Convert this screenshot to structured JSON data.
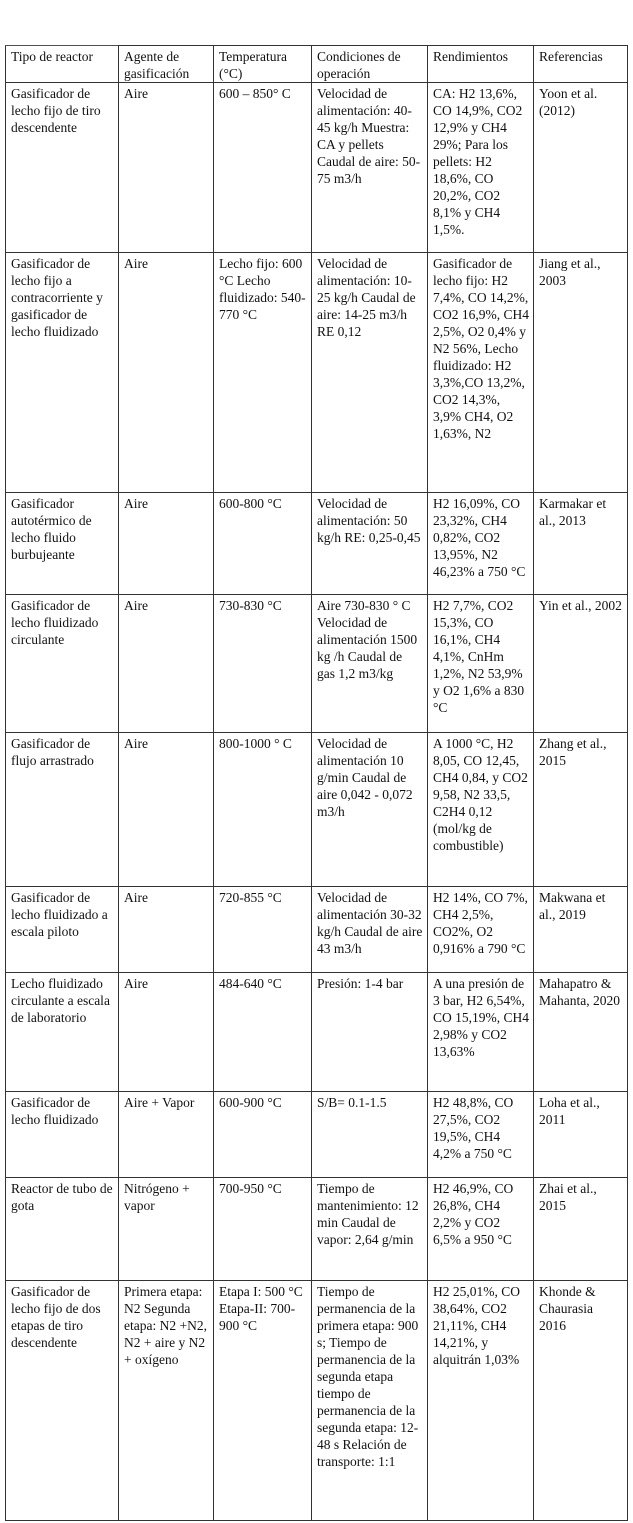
{
  "table": {
    "header": [
      "Tipo de reactor",
      "Agente de gasificación",
      "Temperatura (°C)",
      "Condiciones de operación",
      "Rendimientos",
      "Referencias"
    ],
    "rows": [
      [
        "Gasificador de lecho fijo de tiro descendente",
        "Aire",
        "600 – 850° C",
        "Velocidad de alimentación: 40-45 kg/h Muestra: CA y pellets Caudal de aire: 50-75 m3/h",
        "CA: H2 13,6%, CO 14,9%, CO2 12,9% y CH4 29%; Para los pellets: H2 18,6%, CO 20,2%, CO2 8,1% y CH4 1,5%.",
        "Yoon et al. (2012)"
      ],
      [
        "Gasificador de lecho fijo a contracorriente y gasificador de lecho fluidizado",
        "Aire",
        "Lecho fijo: 600 °C Lecho fluidizado: 540-770 °C",
        "Velocidad de alimentación: 10-25 kg/h Caudal de aire: 14-25 m3/h RE 0,12",
        "Gasificador de lecho fijo: H2 7,4%, CO 14,2%, CO2 16,9%, CH4 2,5%, O2 0,4% y N2 56%, Lecho fluidizado: H2 3,3%,CO 13,2%, CO2 14,3%, 3,9% CH4, O2 1,63%, N2",
        "Jiang et al., 2003"
      ],
      [
        "Gasificador autotérmico de lecho fluido burbujeante",
        "Aire",
        "600-800 °C",
        "Velocidad de alimentación: 50 kg/h RE: 0,25-0,45",
        "H2 16,09%, CO 23,32%, CH4 0,82%, CO2 13,95%, N2 46,23% a 750 °C",
        "Karmakar et al., 2013"
      ],
      [
        "Gasificador de lecho fluidizado circulante",
        "Aire",
        "730-830 °C",
        "Aire 730-830 ° C Velocidad de alimentación 1500 kg /h Caudal de gas 1,2 m3/kg",
        "H2 7,7%, CO2 15,3%, CO 16,1%, CH4 4,1%, CnHm 1,2%, N2 53,9% y O2 1,6% a 830 °C",
        "Yin et al., 2002"
      ],
      [
        "Gasificador de flujo arrastrado",
        "Aire",
        "800-1000 ° C",
        "Velocidad de alimentación 10 g/min Caudal de aire 0,042 - 0,072 m3/h",
        "A 1000 °C, H2 8,05, CO 12,45, CH4 0,84, y CO2 9,58, N2 33,5, C2H4 0,12 (mol/kg de combustible)",
        "Zhang et al., 2015"
      ],
      [
        "Gasificador de lecho fluidizado a escala piloto",
        "Aire",
        "720-855 °C",
        "Velocidad de alimentación 30-32 kg/h Caudal de aire 43 m3/h",
        "H2 14%, CO 7%, CH4 2,5%, CO2%, O2 0,916% a 790 °C",
        "Makwana et al., 2019"
      ],
      [
        "Lecho fluidizado circulante a escala de laboratorio",
        "Aire",
        "484-640 °C",
        "Presión: 1-4 bar",
        "A una presión de 3 bar, H2 6,54%, CO 15,19%, CH4 2,98% y CO2 13,63%",
        "Mahapatro & Mahanta, 2020"
      ],
      [
        "Gasificador de lecho fluidizado",
        "Aire + Vapor",
        "600-900 °C",
        "S/B= 0.1-1.5",
        "H2 48,8%, CO 27,5%, CO2 19,5%, CH4 4,2% a 750 °C",
        "Loha et al., 2011"
      ],
      [
        "Reactor de tubo de gota",
        "Nitrógeno + vapor",
        "700-950 °C",
        "Tiempo de mantenimiento: 12 min Caudal de vapor: 2,64 g/min",
        "H2 46,9%, CO 26,8%, CH4 2,2% y CO2 6,5% a 950 °C",
        "Zhai et al., 2015"
      ],
      [
        "Gasificador de lecho fijo de dos etapas de tiro descendente",
        "Primera etapa: N2 Segunda etapa: N2 +N2, N2 + aire y N2 + oxígeno",
        "Etapa I: 500 °C Etapa-II: 700-900 °C",
        "Tiempo de permanencia de la primera etapa: 900 s; Tiempo de permanencia de la segunda etapa tiempo de permanencia de la segunda etapa: 12-48 s Relación de transporte: 1:1",
        "H2 25,01%, CO 38,64%, CO2 21,11%, CH4 14,21%, y alquitrán 1,03%",
        "Khonde & Chaurasia 2016"
      ]
    ]
  }
}
